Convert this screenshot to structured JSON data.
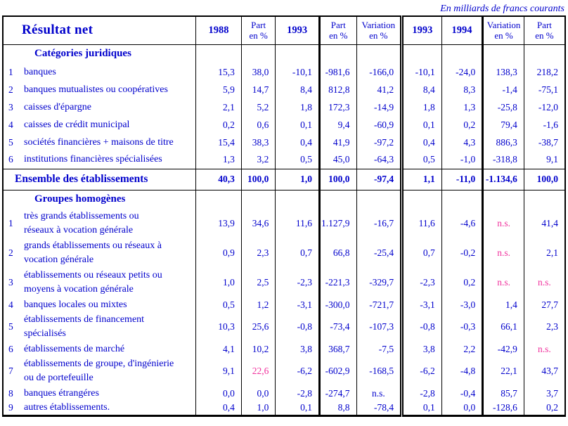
{
  "caption": "En milliards de francs courants",
  "colors": {
    "text_blue": "#0000cc",
    "highlight_pink": "#f0309c",
    "border_black": "#000000",
    "background": "#ffffff"
  },
  "table": {
    "title": "Résultat net",
    "columns": [
      "1988",
      "Part\nen %",
      "1993",
      "Part\nen %",
      "Variation\nen %",
      "1993",
      "1994",
      "Variation\nen %",
      "Part\nen %"
    ],
    "sections": [
      {
        "header": "Catégories juridiques",
        "rows": [
          {
            "n": "1",
            "label": "banques",
            "twoline": false,
            "values": [
              "15,3",
              "38,0",
              "-10,1",
              "-981,6",
              "-166,0",
              "-10,1",
              "-24,0",
              "138,3",
              "218,2"
            ],
            "pink": []
          },
          {
            "n": "2",
            "label": "banques mutualistes ou coopératives",
            "twoline": false,
            "values": [
              "5,9",
              "14,7",
              "8,4",
              "812,8",
              "41,2",
              "8,4",
              "8,3",
              "-1,4",
              "-75,1"
            ],
            "pink": []
          },
          {
            "n": "3",
            "label": "caisses d'épargne",
            "twoline": false,
            "values": [
              "2,1",
              "5,2",
              "1,8",
              "172,3",
              "-14,9",
              "1,8",
              "1,3",
              "-25,8",
              "-12,0"
            ],
            "pink": []
          },
          {
            "n": "4",
            "label": "caisses de crédit municipal",
            "twoline": false,
            "values": [
              "0,2",
              "0,6",
              "0,1",
              "9,4",
              "-60,9",
              "0,1",
              "0,2",
              "79,4",
              "-1,6"
            ],
            "pink": []
          },
          {
            "n": "5",
            "label": "sociétés financières + maisons de titre",
            "twoline": false,
            "values": [
              "15,4",
              "38,3",
              "0,4",
              "41,9",
              "-97,2",
              "0,4",
              "4,3",
              "886,3",
              "-38,7"
            ],
            "pink": []
          },
          {
            "n": "6",
            "label": "institutions financières spécialisées",
            "twoline": false,
            "values": [
              "1,3",
              "3,2",
              "0,5",
              "45,0",
              "-64,3",
              "0,5",
              "-1,0",
              "-318,8",
              "9,1"
            ],
            "pink": []
          }
        ]
      },
      {
        "header": "Groupes homogènes",
        "rows": [
          {
            "n": "1",
            "label": "très grands établissements ou\nréseaux à vocation générale",
            "twoline": true,
            "values": [
              "13,9",
              "34,6",
              "11,6",
              "1.127,9",
              "-16,7",
              "11,6",
              "-4,6",
              "n.s.",
              "41,4"
            ],
            "pink": [
              7
            ]
          },
          {
            "n": "2",
            "label": "grands établissements ou réseaux à\nvocation générale",
            "twoline": true,
            "values": [
              "0,9",
              "2,3",
              "0,7",
              "66,8",
              "-25,4",
              "0,7",
              "-0,2",
              "n.s.",
              "2,1"
            ],
            "pink": [
              7
            ]
          },
          {
            "n": "3",
            "label": "établissements ou réseaux petits ou\nmoyens à vocation générale",
            "twoline": true,
            "values": [
              "1,0",
              "2,5",
              "-2,3",
              "-221,3",
              "-329,7",
              "-2,3",
              "0,2",
              "n.s.",
              "n.s."
            ],
            "pink": [
              7,
              8
            ]
          },
          {
            "n": "4",
            "label": "banques locales ou mixtes",
            "twoline": false,
            "values": [
              "0,5",
              "1,2",
              "-3,1",
              "-300,0",
              "-721,7",
              "-3,1",
              "-3,0",
              "1,4",
              "27,7"
            ],
            "pink": []
          },
          {
            "n": "5",
            "label": "établissements de financement\nspécialisés",
            "twoline": true,
            "values": [
              "10,3",
              "25,6",
              "-0,8",
              "-73,4",
              "-107,3",
              "-0,8",
              "-0,3",
              "66,1",
              "2,3"
            ],
            "pink": []
          },
          {
            "n": "6",
            "label": "établissements de marché",
            "twoline": false,
            "values": [
              "4,1",
              "10,2",
              "3,8",
              "368,7",
              "-7,5",
              "3,8",
              "2,2",
              "-42,9",
              "n.s."
            ],
            "pink": [
              8
            ]
          },
          {
            "n": "7",
            "label": "établissements de groupe, d'ingénierie\nou de portefeuille",
            "twoline": true,
            "values": [
              "9,1",
              "22,6",
              "-6,2",
              "-602,9",
              "-168,5",
              "-6,2",
              "-4,8",
              "22,1",
              "43,7"
            ],
            "pink": [
              1
            ]
          },
          {
            "n": "8",
            "label": "banques étrangéres",
            "twoline": false,
            "values": [
              "0,0",
              "0,0",
              "-2,8",
              "-274,7",
              "n.s.",
              "-2,8",
              "-0,4",
              "85,7",
              "3,7"
            ],
            "pink": []
          },
          {
            "n": "9",
            "label": "autres établissements.",
            "twoline": false,
            "values": [
              "0,4",
              "1,0",
              "0,1",
              "8,8",
              "-78,4",
              "0,1",
              "0,0",
              "-128,6",
              "0,2"
            ],
            "pink": []
          }
        ]
      }
    ],
    "total_row": {
      "label": "Ensemble des établissements",
      "values": [
        "40,3",
        "100,0",
        "1,0",
        "100,0",
        "-97,4",
        "1,1",
        "-11,0",
        "-1.134,6",
        "100,0"
      ],
      "pink": []
    }
  }
}
